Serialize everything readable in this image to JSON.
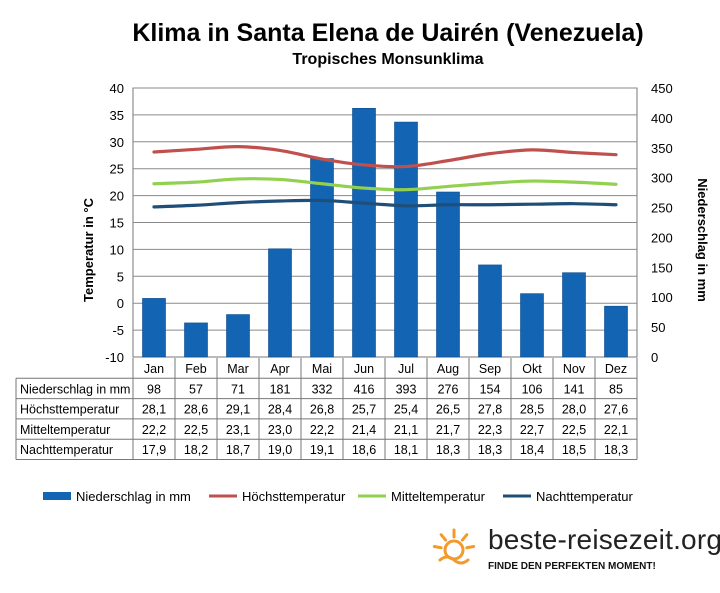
{
  "colors": {
    "precip": "#1464b4",
    "precip_edge": "#0a4a8c",
    "high": "#c0504d",
    "mean": "#92d050",
    "night": "#1f4e79",
    "logo_orange": "#f39a2c"
  },
  "chart_data": {
    "type": "bar+line",
    "title": "Klima in Santa Elena de Uairén (Venezuela)",
    "subtitle": "Tropisches Monsunklima",
    "categories": [
      "Jan",
      "Feb",
      "Mar",
      "Apr",
      "Mai",
      "Jun",
      "Jul",
      "Aug",
      "Sep",
      "Okt",
      "Nov",
      "Dez"
    ],
    "y_left": {
      "label": "Temperatur in °C",
      "min": -10,
      "max": 40,
      "step": 5
    },
    "y_right": {
      "label": "Niederschlag in mm",
      "min": 0,
      "max": 450,
      "step": 50
    },
    "y_left_ticks": [
      "-10",
      "-5",
      "0",
      "5",
      "10",
      "15",
      "20",
      "25",
      "30",
      "35",
      "40"
    ],
    "y_right_ticks": [
      "0",
      "50",
      "100",
      "150",
      "200",
      "250",
      "300",
      "350",
      "400",
      "450"
    ],
    "series": [
      {
        "name": "Niederschlag in mm",
        "type": "bar",
        "axis": "right",
        "values": [
          98,
          57,
          71,
          181,
          332,
          416,
          393,
          276,
          154,
          106,
          141,
          85
        ],
        "labels": [
          "98",
          "57",
          "71",
          "181",
          "332",
          "416",
          "393",
          "276",
          "154",
          "106",
          "141",
          "85"
        ]
      },
      {
        "name": "Höchsttemperatur",
        "type": "line",
        "axis": "left",
        "values": [
          28.1,
          28.6,
          29.1,
          28.4,
          26.8,
          25.7,
          25.4,
          26.5,
          27.8,
          28.5,
          28.0,
          27.6
        ],
        "labels": [
          "28,1",
          "28,6",
          "29,1",
          "28,4",
          "26,8",
          "25,7",
          "25,4",
          "26,5",
          "27,8",
          "28,5",
          "28,0",
          "27,6"
        ]
      },
      {
        "name": "Mitteltemperatur",
        "type": "line",
        "axis": "left",
        "values": [
          22.2,
          22.5,
          23.1,
          23.0,
          22.2,
          21.4,
          21.1,
          21.7,
          22.3,
          22.7,
          22.5,
          22.1
        ],
        "labels": [
          "22,2",
          "22,5",
          "23,1",
          "23,0",
          "22,2",
          "21,4",
          "21,1",
          "21,7",
          "22,3",
          "22,7",
          "22,5",
          "22,1"
        ]
      },
      {
        "name": "Nachttemperatur",
        "type": "line",
        "axis": "left",
        "values": [
          17.9,
          18.2,
          18.7,
          19.0,
          19.1,
          18.6,
          18.1,
          18.3,
          18.3,
          18.4,
          18.5,
          18.3
        ],
        "labels": [
          "17,9",
          "18,2",
          "18,7",
          "19,0",
          "19,1",
          "18,6",
          "18,1",
          "18,3",
          "18,3",
          "18,4",
          "18,5",
          "18,3"
        ]
      }
    ],
    "table_row_labels": [
      "Niederschlag in mm",
      "Höchsttemperatur",
      "Mitteltemperatur",
      "Nachttemperatur"
    ],
    "legend": [
      "Niederschlag in mm",
      "Höchsttemperatur",
      "Mitteltemperatur",
      "Nachttemperatur"
    ]
  },
  "brand": {
    "name": "beste-reisezeit.org",
    "tagline": "FINDE DEN PERFEKTEN MOMENT!",
    "icon": "sun-icon"
  }
}
